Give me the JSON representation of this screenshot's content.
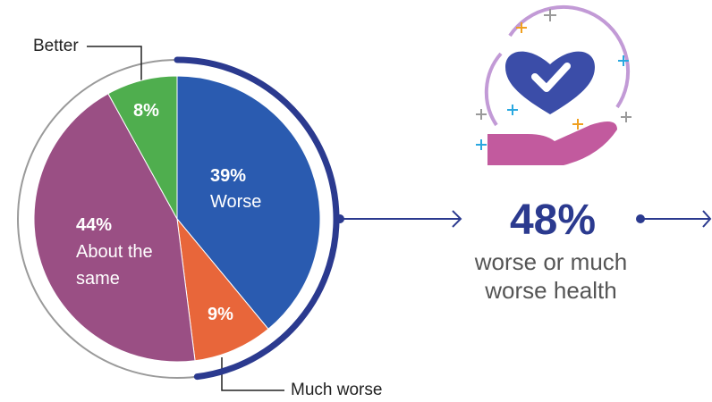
{
  "chart_data": {
    "type": "pie",
    "categories": [
      "Worse",
      "Much worse",
      "About the same",
      "Better"
    ],
    "values": [
      39,
      9,
      44,
      8
    ],
    "value_labels": [
      "39%",
      "9%",
      "44%",
      "8%"
    ],
    "colors": [
      "#2a5bb0",
      "#e8663a",
      "#9a4f84",
      "#4fae4e"
    ],
    "annotations": [
      "48%",
      "worse or much worse health"
    ]
  }
}
